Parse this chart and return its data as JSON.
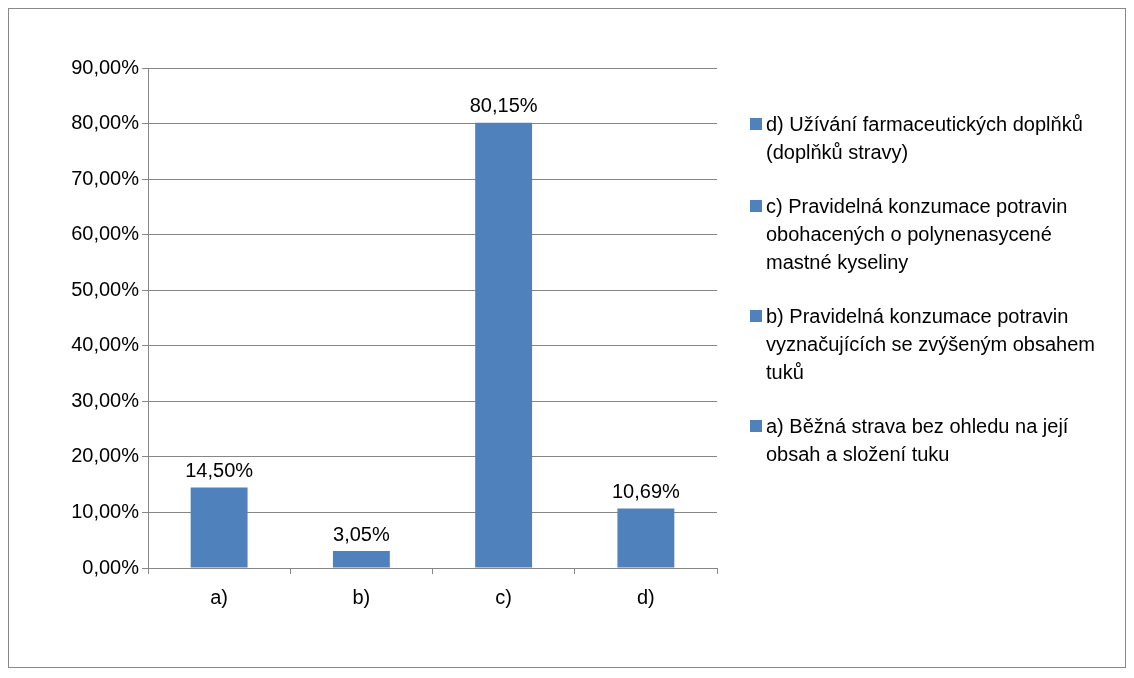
{
  "chart_data": {
    "type": "bar",
    "stacked": true,
    "categories": [
      "a)",
      "b)",
      "c)",
      "d)"
    ],
    "series": [
      {
        "name": "a) Běžná strava bez ohledu na její obsah a složení tuku",
        "color": "#4f81bd",
        "values": [
          14.5,
          null,
          null,
          null
        ],
        "value_labels": [
          "14,50%",
          null,
          null,
          null
        ]
      },
      {
        "name": "b) Pravidelná konzumace potravin vyznačujících se zvýšeným obsahem tuků",
        "color": "#4f81bd",
        "values": [
          null,
          3.05,
          null,
          null
        ],
        "value_labels": [
          null,
          "3,05%",
          null,
          null
        ]
      },
      {
        "name": "c) Pravidelná konzumace potravin obohacených o polynenasycené mastné kyseliny",
        "color": "#4f81bd",
        "values": [
          null,
          null,
          80.15,
          null
        ],
        "value_labels": [
          null,
          null,
          "80,15%",
          null
        ]
      },
      {
        "name": "d) Užívání farmaceutických doplňků (doplňků stravy)",
        "color": "#4f81bd",
        "values": [
          null,
          null,
          null,
          10.69
        ],
        "value_labels": [
          null,
          null,
          null,
          "10,69%"
        ]
      }
    ],
    "ylim": [
      0,
      90
    ],
    "yticks": [
      {
        "value": 0,
        "label": "0,00%"
      },
      {
        "value": 10,
        "label": "10,00%"
      },
      {
        "value": 20,
        "label": "20,00%"
      },
      {
        "value": 30,
        "label": "30,00%"
      },
      {
        "value": 40,
        "label": "40,00%"
      },
      {
        "value": 50,
        "label": "50,00%"
      },
      {
        "value": 60,
        "label": "60,00%"
      },
      {
        "value": 70,
        "label": "70,00%"
      },
      {
        "value": 80,
        "label": "80,00%"
      },
      {
        "value": 90,
        "label": "90,00%"
      }
    ],
    "grid": "y",
    "legend": "right"
  }
}
